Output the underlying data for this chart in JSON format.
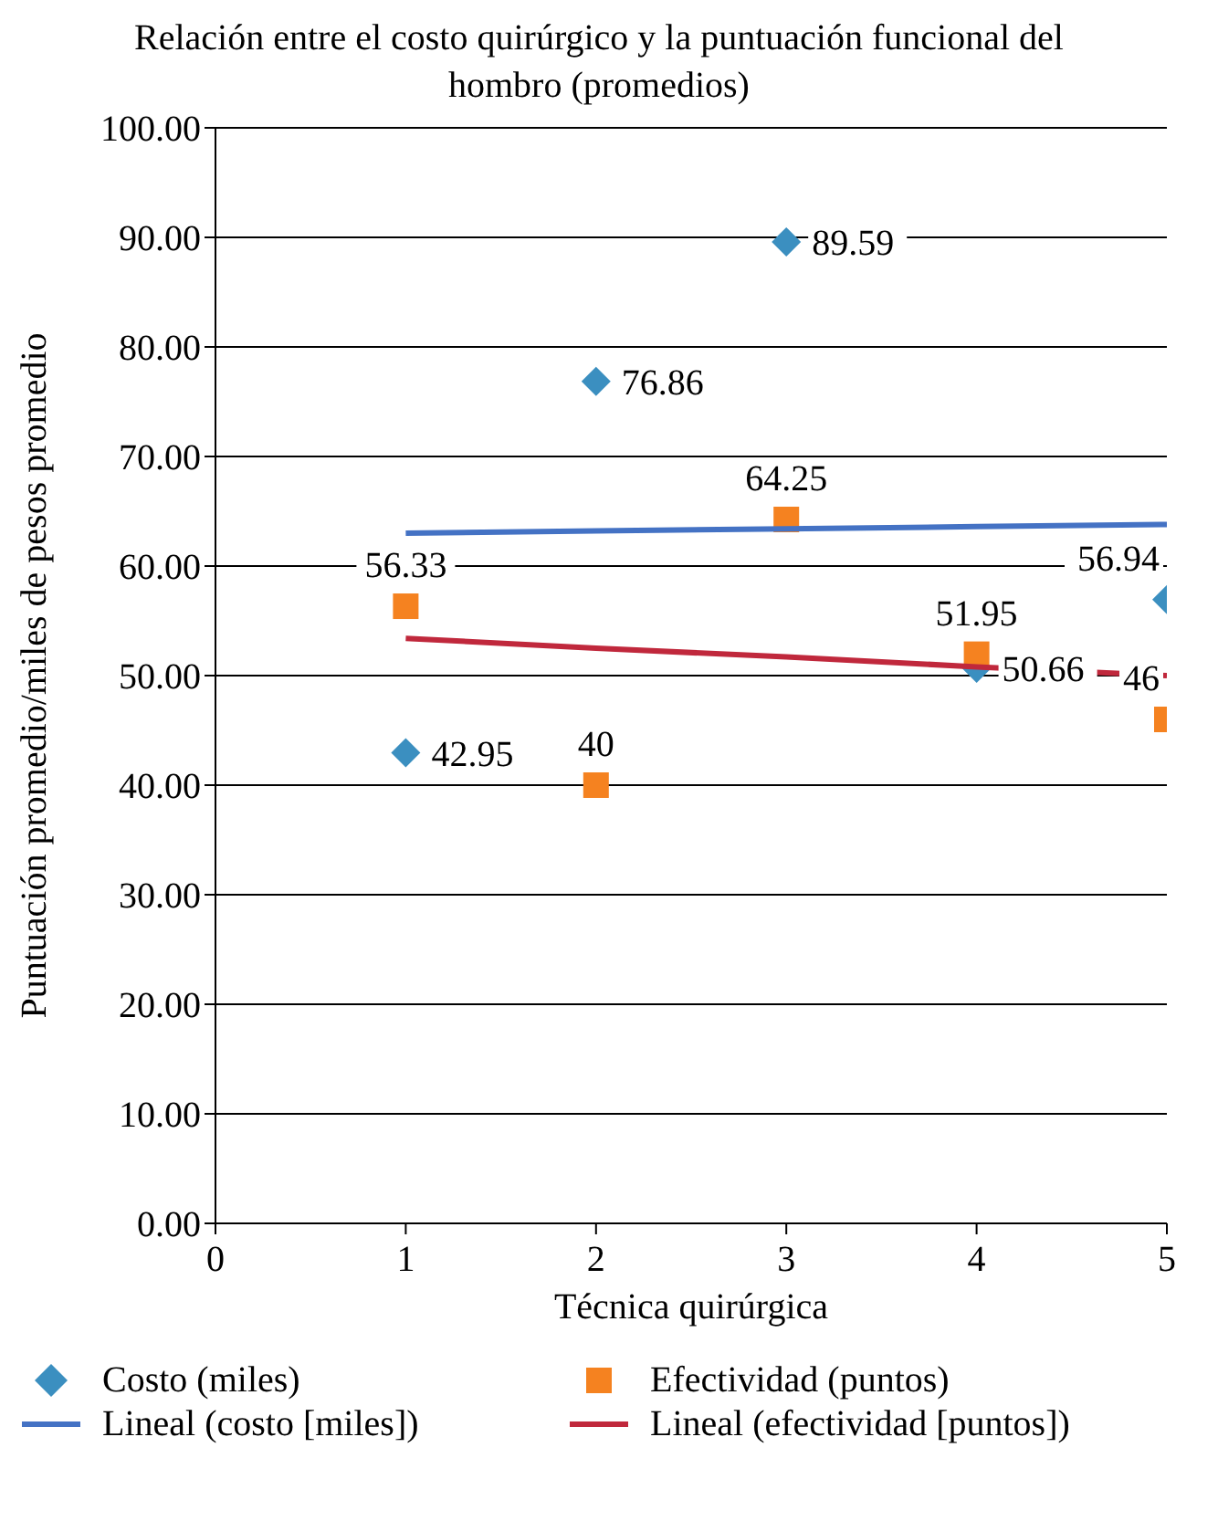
{
  "chart_data": {
    "type": "scatter",
    "title": "Relación entre el costo quirúrgico y la puntuación funcional del hombro (promedios)",
    "xlabel": "Técnica quirúrgica",
    "ylabel": "Puntuación promedio/miles de pesos promedio",
    "x": [
      1,
      2,
      3,
      4,
      5
    ],
    "series": [
      {
        "name": "Costo (miles)",
        "marker": "diamond",
        "color": "#3b8fc0",
        "values": [
          42.95,
          76.86,
          89.59,
          50.66,
          56.94
        ],
        "value_labels": [
          "42.95",
          "76.86",
          "89.59",
          "50.66",
          "56.94"
        ]
      },
      {
        "name": "Efectividad (puntos)",
        "marker": "square",
        "color": "#f58220",
        "values": [
          56.33,
          40,
          64.25,
          51.95,
          46
        ],
        "value_labels": [
          "56.33",
          "40",
          "64.25",
          "51.95",
          "46"
        ]
      },
      {
        "name": "Lineal (costo [miles])",
        "type": "line",
        "color": "#4472c4",
        "values": [
          63.0,
          63.2,
          63.4,
          63.6,
          63.8
        ]
      },
      {
        "name": "Lineal (efectividad [puntos])",
        "type": "line",
        "color": "#c0283c",
        "values": [
          53.4,
          52.5,
          51.7,
          50.8,
          50.0
        ]
      }
    ],
    "xlim": [
      0,
      5
    ],
    "xticks": [
      0,
      1,
      2,
      3,
      4,
      5
    ],
    "ylim": [
      0,
      100
    ],
    "yticks": [
      {
        "value": 0,
        "label": "0.00"
      },
      {
        "value": 10,
        "label": "10.00"
      },
      {
        "value": 20,
        "label": "20.00"
      },
      {
        "value": 30,
        "label": "30.00"
      },
      {
        "value": 40,
        "label": "40.00"
      },
      {
        "value": 50,
        "label": "50.00"
      },
      {
        "value": 60,
        "label": "60.00"
      },
      {
        "value": 70,
        "label": "70.00"
      },
      {
        "value": 80,
        "label": "80.00"
      },
      {
        "value": 90,
        "label": "90.00"
      },
      {
        "value": 100,
        "label": "100.00"
      }
    ],
    "grid": "y",
    "legend": "bottom"
  }
}
